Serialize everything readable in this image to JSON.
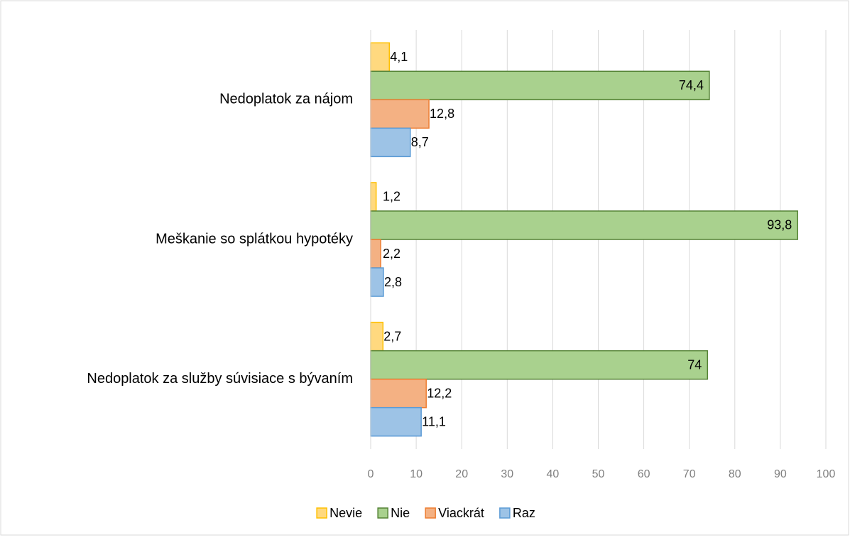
{
  "chart_data": {
    "type": "barh",
    "categories": [
      "Nedoplatok za nájom",
      "Meškanie so splátkou hypotéky",
      "Nedoplatok za služby súvisiace s bývaním"
    ],
    "series": [
      {
        "name": "Nevie",
        "color": "#ffd97f",
        "border": "#ffc000",
        "values": [
          4.1,
          1.2,
          2.7
        ],
        "value_labels": [
          "4,1",
          "1,2",
          "2,7"
        ]
      },
      {
        "name": "Nie",
        "color": "#a9d18e",
        "border": "#548235",
        "values": [
          74.4,
          93.8,
          74
        ],
        "value_labels": [
          "74,4",
          "93,8",
          "74"
        ]
      },
      {
        "name": "Viackrát",
        "color": "#f4b183",
        "border": "#ed7d31",
        "values": [
          12.8,
          2.2,
          12.2
        ],
        "value_labels": [
          "12,8",
          "2,2",
          "12,2"
        ]
      },
      {
        "name": "Raz",
        "color": "#9dc3e6",
        "border": "#5b9bd5",
        "values": [
          8.7,
          2.8,
          11.1
        ],
        "value_labels": [
          "8,7",
          "2,8",
          "11,1"
        ]
      }
    ],
    "xlim": [
      0,
      100
    ],
    "xticks": [
      0,
      10,
      20,
      30,
      40,
      50,
      60,
      70,
      80,
      90,
      100
    ],
    "grid": true,
    "legend": "bottom"
  }
}
